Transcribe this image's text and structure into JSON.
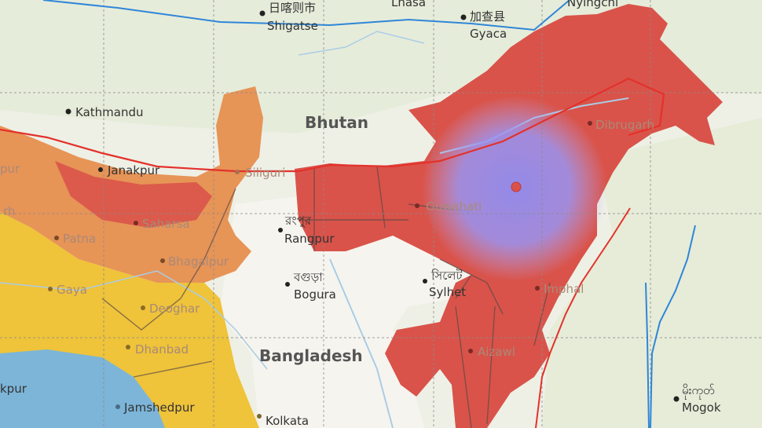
{
  "map": {
    "colors": {
      "land": "#eef0e6",
      "bangladesh_land": "#f6f4ee",
      "myanmar_land": "#e6ecd8",
      "zone_red": "#d9534a",
      "zone_orange": "#e79457",
      "zone_yellow": "#efc33a",
      "zone_blue": "#7cb5d8",
      "river": "#a9cde6",
      "fault_red": "#e3322b",
      "fault_blue": "#2f86d8",
      "epicenter_glow": "#8f8cf0",
      "grid": "#8a8a8a"
    },
    "countries": {
      "bhutan": "Bhutan",
      "bangladesh": "Bangladesh"
    },
    "cities": {
      "shigatse_local": "日喀则市",
      "shigatse": "Shigatse",
      "lhasa": "Lhasa",
      "gyaca_local": "加查县",
      "gyaca": "Gyaca",
      "nyingchi": "Nyingchi",
      "kathmandu": "Kathmandu",
      "janakpur": "Janakpur",
      "siliguri": "Siliguri",
      "rangpur_local": "রংপুর",
      "rangpur": "Rangpur",
      "bogura_local": "বগুড়া",
      "bogura": "Bogura",
      "sylhet_local": "সিলেট",
      "sylhet": "Sylhet",
      "guwahati": "Guwahati",
      "dibrugarh": "Dibrugarh",
      "imphal": "Imphal",
      "aizawl": "Aizawl",
      "saharsa": "Saharsa",
      "patna": "Patna",
      "bhagalpur": "Bhagalpur",
      "gaya": "Gaya",
      "deoghar": "Deoghar",
      "dhanbad": "Dhanbad",
      "jamshedpur": "Jamshedpur",
      "kolkata": "Kolkata",
      "mogok_local": "မိုးကုတ်",
      "mogok": "Mogok",
      "edge_pur": "pur",
      "edge_rh": "rh",
      "edge_kpur": "kpur"
    }
  }
}
